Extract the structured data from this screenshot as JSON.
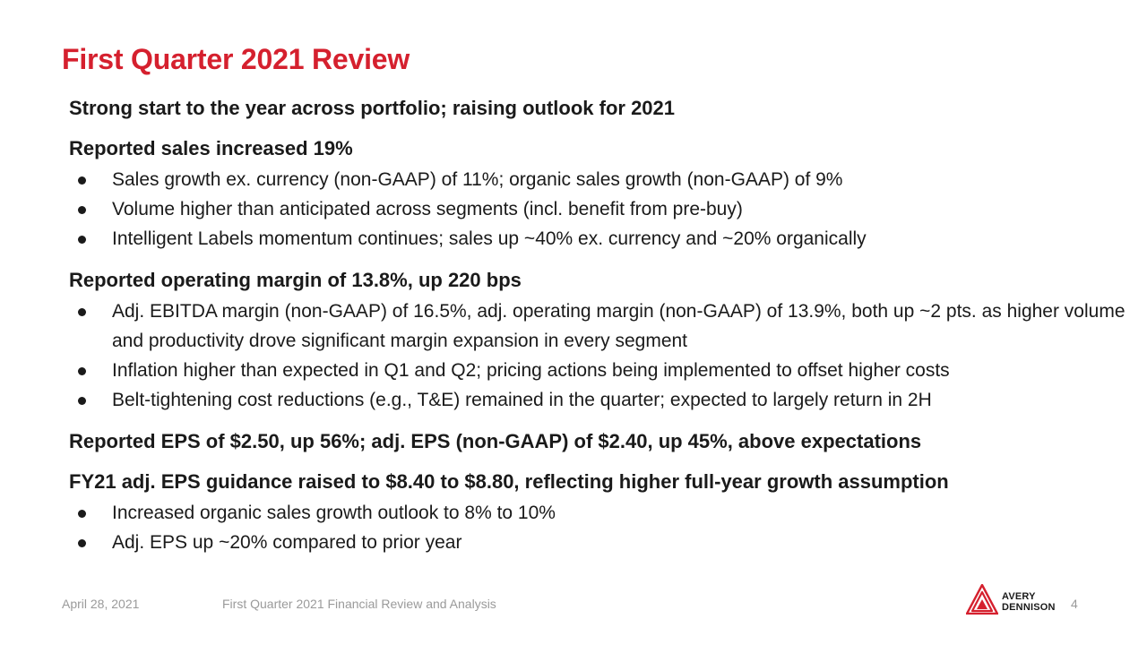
{
  "slide": {
    "title": "First Quarter 2021 Review",
    "sections": [
      {
        "heading": "Strong start to the year across portfolio; raising outlook for 2021",
        "bullets": []
      },
      {
        "heading": "Reported sales increased 19%",
        "bullets": [
          "Sales growth ex. currency (non-GAAP) of 11%; organic sales growth (non-GAAP) of 9%",
          "Volume higher than anticipated across segments (incl. benefit from pre-buy)",
          "Intelligent Labels momentum continues; sales up ~40% ex. currency and ~20% organically"
        ]
      },
      {
        "heading": "Reported operating margin of 13.8%, up 220 bps",
        "bullets": [
          "Adj. EBITDA margin (non-GAAP) of 16.5%, adj. operating margin (non-GAAP) of 13.9%, both up ~2 pts. as higher volume and productivity drove significant margin expansion in every segment",
          "Inflation higher than expected in Q1 and Q2; pricing actions being implemented to offset higher costs",
          "Belt-tightening cost reductions (e.g., T&E) remained in the quarter; expected to largely return in 2H"
        ]
      },
      {
        "heading": "Reported EPS of $2.50, up 56%; adj. EPS (non-GAAP) of $2.40, up 45%, above expectations",
        "bullets": []
      },
      {
        "heading": "FY21 adj. EPS guidance raised to $8.40 to $8.80, reflecting higher full-year growth assumption",
        "bullets": [
          "Increased organic sales growth outlook to 8% to 10%",
          "Adj. EPS up ~20% compared to prior year"
        ]
      }
    ]
  },
  "footer": {
    "date": "April 28, 2021",
    "center": "First Quarter 2021 Financial Review and Analysis",
    "page_number": "4",
    "logo_line1": "AVERY",
    "logo_line2": "DENNISON"
  },
  "colors": {
    "title": "#d5202e",
    "logo": "#d5202e",
    "text": "#1a1a1a",
    "footer": "#9a9a9a"
  },
  "icons": {
    "logo": "avery-dennison-logo-icon",
    "bullet": "bullet-dot-icon"
  }
}
